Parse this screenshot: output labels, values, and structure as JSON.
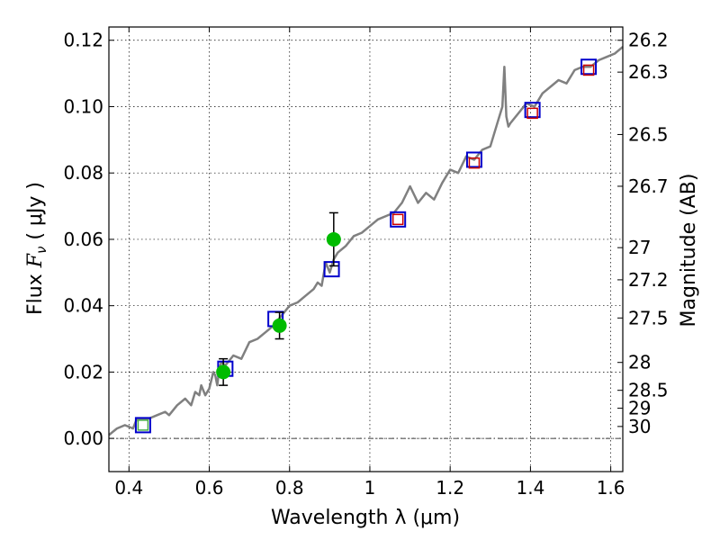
{
  "chart_data": {
    "type": "scatter",
    "xlabel": "Wavelength  λ (μm)",
    "ylabel": "Flux  F_ν  ( μJy )",
    "ylabel_parts": {
      "prefix": "Flux ",
      "symbol": "F",
      "subscript": "ν",
      "suffix": " ( μJy )"
    },
    "y2label": "Magnitude (AB)",
    "xlim": [
      0.35,
      1.63
    ],
    "ylim": [
      -0.01,
      0.124
    ],
    "grid": true,
    "zero_line": true,
    "x_ticks": [
      {
        "value": 0.4,
        "label": "0.4"
      },
      {
        "value": 0.6,
        "label": "0.6"
      },
      {
        "value": 0.8,
        "label": "0.8"
      },
      {
        "value": 1.0,
        "label": "1"
      },
      {
        "value": 1.2,
        "label": "1.2"
      },
      {
        "value": 1.4,
        "label": "1.4"
      },
      {
        "value": 1.6,
        "label": "1.6"
      }
    ],
    "y_ticks": [
      {
        "value": 0.0,
        "label": "0.00"
      },
      {
        "value": 0.02,
        "label": "0.02"
      },
      {
        "value": 0.04,
        "label": "0.04"
      },
      {
        "value": 0.06,
        "label": "0.06"
      },
      {
        "value": 0.08,
        "label": "0.08"
      },
      {
        "value": 0.1,
        "label": "0.10"
      },
      {
        "value": 0.12,
        "label": "0.12"
      }
    ],
    "magnitude_ticks": [
      {
        "flux": 0.12,
        "label": "26.2"
      },
      {
        "flux": 0.1104,
        "label": "26.3"
      },
      {
        "flux": 0.0916,
        "label": "26.5"
      },
      {
        "flux": 0.076,
        "label": "26.7"
      },
      {
        "flux": 0.0575,
        "label": "27"
      },
      {
        "flux": 0.0478,
        "label": "27.2"
      },
      {
        "flux": 0.0363,
        "label": "27.5"
      },
      {
        "flux": 0.0229,
        "label": "28"
      },
      {
        "flux": 0.0145,
        "label": "28.5"
      },
      {
        "flux": 0.0091,
        "label": "29"
      },
      {
        "flux": 0.0036,
        "label": "30"
      }
    ],
    "series": [
      {
        "kind": "line",
        "color": "#808080",
        "x": [
          0.35,
          0.37,
          0.39,
          0.41,
          0.42,
          0.43,
          0.45,
          0.47,
          0.49,
          0.5,
          0.52,
          0.54,
          0.555,
          0.565,
          0.575,
          0.58,
          0.59,
          0.6,
          0.61,
          0.615,
          0.62,
          0.625,
          0.63,
          0.64,
          0.66,
          0.68,
          0.7,
          0.72,
          0.74,
          0.76,
          0.78,
          0.8,
          0.82,
          0.84,
          0.86,
          0.87,
          0.88,
          0.89,
          0.9,
          0.91,
          0.92,
          0.94,
          0.96,
          0.98,
          1.0,
          1.02,
          1.04,
          1.06,
          1.08,
          1.1,
          1.12,
          1.14,
          1.16,
          1.18,
          1.2,
          1.22,
          1.24,
          1.26,
          1.28,
          1.3,
          1.32,
          1.33,
          1.335,
          1.34,
          1.345,
          1.35,
          1.37,
          1.39,
          1.41,
          1.43,
          1.45,
          1.47,
          1.49,
          1.51,
          1.53,
          1.55,
          1.57,
          1.59,
          1.61,
          1.63
        ],
        "y": [
          0.001,
          0.003,
          0.004,
          0.003,
          0.006,
          0.006,
          0.006,
          0.007,
          0.008,
          0.007,
          0.01,
          0.012,
          0.01,
          0.014,
          0.013,
          0.016,
          0.013,
          0.015,
          0.02,
          0.019,
          0.016,
          0.021,
          0.023,
          0.022,
          0.025,
          0.024,
          0.029,
          0.03,
          0.032,
          0.034,
          0.037,
          0.04,
          0.041,
          0.043,
          0.045,
          0.047,
          0.046,
          0.053,
          0.05,
          0.054,
          0.056,
          0.058,
          0.061,
          0.062,
          0.064,
          0.066,
          0.067,
          0.068,
          0.071,
          0.076,
          0.071,
          0.074,
          0.072,
          0.077,
          0.081,
          0.08,
          0.085,
          0.084,
          0.087,
          0.088,
          0.096,
          0.1,
          0.112,
          0.097,
          0.094,
          0.095,
          0.098,
          0.101,
          0.1,
          0.104,
          0.106,
          0.108,
          0.107,
          0.111,
          0.112,
          0.112,
          0.114,
          0.115,
          0.116,
          0.118
        ]
      },
      {
        "kind": "points",
        "marker": "open-square",
        "color": "#0000cc",
        "x": [
          0.435,
          0.64,
          0.765,
          0.905,
          1.07,
          1.26,
          1.405,
          1.545
        ],
        "y": [
          0.004,
          0.021,
          0.036,
          0.051,
          0.066,
          0.084,
          0.099,
          0.112
        ]
      },
      {
        "kind": "points",
        "marker": "open-square-small",
        "color": "#cc0000",
        "x": [
          1.07,
          1.26,
          1.405,
          1.545
        ],
        "y": [
          0.066,
          0.083,
          0.098,
          0.111
        ]
      },
      {
        "kind": "points",
        "marker": "open-square-small",
        "color": "#44aa44",
        "x": [
          0.435
        ],
        "y": [
          0.004
        ]
      },
      {
        "kind": "points",
        "marker": "filled-circle",
        "color": "#00bb00",
        "x": [
          0.635,
          0.775,
          0.91
        ],
        "y": [
          0.02,
          0.034,
          0.06
        ],
        "yerr": [
          0.004,
          0.004,
          0.008
        ]
      }
    ]
  }
}
